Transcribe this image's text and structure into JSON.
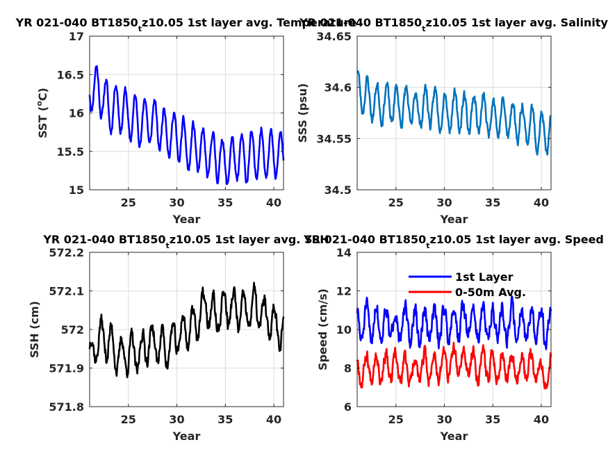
{
  "chart_data": [
    {
      "type": "line",
      "title": "YR 021-040 BT1850",
      "title_sub": "t",
      "title_rest": "z10.05 1st layer avg. Temperature",
      "xlabel": "Year",
      "ylabel": "SST (",
      "ylabel_sup": "o",
      "ylabel_rest": "C)",
      "xlim": [
        21,
        41
      ],
      "ylim": [
        15,
        17
      ],
      "xticks": [
        25,
        30,
        35,
        40
      ],
      "yticks": [
        15,
        15.5,
        16,
        16.5,
        17
      ],
      "ytick_labels": [
        "15",
        "15.5",
        "16",
        "16.5",
        "17"
      ],
      "grid": true,
      "series": [
        {
          "color": "#0000ff",
          "base": [
            [
              21,
              16.35
            ],
            [
              22,
              16.3
            ],
            [
              23,
              16.05
            ],
            [
              24,
              16.1
            ],
            [
              25,
              15.95
            ],
            [
              26,
              15.9
            ],
            [
              27,
              15.9
            ],
            [
              28,
              15.85
            ],
            [
              29,
              15.75
            ],
            [
              30,
              15.7
            ],
            [
              31,
              15.55
            ],
            [
              32,
              15.55
            ],
            [
              33,
              15.45
            ],
            [
              34,
              15.45
            ],
            [
              35,
              15.35
            ],
            [
              36,
              15.4
            ],
            [
              37,
              15.4
            ],
            [
              38,
              15.45
            ],
            [
              39,
              15.5
            ],
            [
              40,
              15.45
            ],
            [
              41,
              15.45
            ]
          ],
          "amplitude": 0.3,
          "period": 1,
          "phase": 0.55,
          "noise": 0.04,
          "seed": 11
        }
      ]
    },
    {
      "type": "line",
      "title": "YR 021-040 BT1850",
      "title_sub": "t",
      "title_rest": "z10.05 1st layer avg. Salinity",
      "xlabel": "Year",
      "ylabel": "SSS (psu)",
      "xlim": [
        21,
        41
      ],
      "ylim": [
        34.5,
        34.65
      ],
      "xticks": [
        25,
        30,
        35,
        40
      ],
      "yticks": [
        34.5,
        34.55,
        34.6,
        34.65
      ],
      "ytick_labels": [
        "34.5",
        "34.55",
        "34.6",
        "34.65"
      ],
      "grid": true,
      "series": [
        {
          "color": "#0072bd",
          "base": [
            [
              21,
              34.6
            ],
            [
              22,
              34.59
            ],
            [
              23,
              34.585
            ],
            [
              24,
              34.585
            ],
            [
              25,
              34.582
            ],
            [
              26,
              34.582
            ],
            [
              27,
              34.578
            ],
            [
              28,
              34.582
            ],
            [
              29,
              34.58
            ],
            [
              30,
              34.578
            ],
            [
              31,
              34.577
            ],
            [
              32,
              34.575
            ],
            [
              33,
              34.575
            ],
            [
              34,
              34.573
            ],
            [
              35,
              34.572
            ],
            [
              36,
              34.57
            ],
            [
              37,
              34.568
            ],
            [
              38,
              34.566
            ],
            [
              39,
              34.562
            ],
            [
              40,
              34.556
            ],
            [
              41,
              34.553
            ]
          ],
          "amplitude": 0.018,
          "period": 1,
          "phase": 0.2,
          "noise": 0.004,
          "seed": 23
        }
      ]
    },
    {
      "type": "line",
      "title": "YR 021-040 BT1850",
      "title_sub": "t",
      "title_rest": "z10.05 1st layer avg. SSH",
      "xlabel": "Year",
      "ylabel": "SSH (cm)",
      "xlim": [
        21,
        41
      ],
      "ylim": [
        571.8,
        572.2
      ],
      "xticks": [
        25,
        30,
        35,
        40
      ],
      "yticks": [
        571.8,
        571.9,
        572,
        572.1,
        572.2
      ],
      "ytick_labels": [
        "571.8",
        "571.9",
        "572",
        "572.1",
        "572.2"
      ],
      "grid": true,
      "series": [
        {
          "color": "#000000",
          "base": [
            [
              21,
              571.93
            ],
            [
              22,
              571.98
            ],
            [
              23,
              571.97
            ],
            [
              24,
              571.93
            ],
            [
              25,
              571.94
            ],
            [
              26,
              571.93
            ],
            [
              27,
              571.97
            ],
            [
              28,
              571.96
            ],
            [
              29,
              571.95
            ],
            [
              30,
              571.98
            ],
            [
              31,
              572.0
            ],
            [
              32,
              572.02
            ],
            [
              33,
              572.06
            ],
            [
              34,
              572.03
            ],
            [
              35,
              572.06
            ],
            [
              36,
              572.05
            ],
            [
              37,
              572.04
            ],
            [
              38,
              572.06
            ],
            [
              39,
              572.03
            ],
            [
              40,
              572.02
            ],
            [
              41,
              572.0
            ]
          ],
          "amplitude": 0.045,
          "period": 1.05,
          "phase": 0.1,
          "noise": 0.015,
          "seed": 37
        }
      ]
    },
    {
      "type": "line",
      "title": "YR 021-040 BT1850",
      "title_sub": "t",
      "title_rest": "z10.05 1st layer avg. Speed",
      "xlabel": "Year",
      "ylabel": "Speed (cm/s)",
      "xlim": [
        21,
        41
      ],
      "ylim": [
        6,
        14
      ],
      "xticks": [
        25,
        30,
        35,
        40
      ],
      "yticks": [
        6,
        8,
        10,
        12,
        14
      ],
      "ytick_labels": [
        "6",
        "8",
        "10",
        "12",
        "14"
      ],
      "grid": true,
      "legend": {
        "placement": "top-right",
        "entries": [
          "1st Layer",
          "0-50m Avg."
        ]
      },
      "series": [
        {
          "name": "1st Layer",
          "color": "#0000ff",
          "base": [
            [
              21,
              10.2
            ],
            [
              23,
              10.4
            ],
            [
              25,
              10.3
            ],
            [
              27,
              10.1
            ],
            [
              29,
              10.2
            ],
            [
              31,
              10.5
            ],
            [
              33,
              10.4
            ],
            [
              35,
              10.3
            ],
            [
              37,
              10.4
            ],
            [
              39,
              10.2
            ],
            [
              41,
              10.1
            ]
          ],
          "amplitude": 0.85,
          "period": 1,
          "phase": 0.3,
          "noise": 0.35,
          "seed": 51
        },
        {
          "name": "0-50m Avg.",
          "color": "#ff0000",
          "base": [
            [
              21,
              7.9
            ],
            [
              23,
              8.2
            ],
            [
              25,
              7.9
            ],
            [
              27,
              7.9
            ],
            [
              29,
              8.1
            ],
            [
              31,
              8.3
            ],
            [
              33,
              8.2
            ],
            [
              35,
              8.1
            ],
            [
              37,
              8.2
            ],
            [
              39,
              8.0
            ],
            [
              41,
              7.8
            ]
          ],
          "amplitude": 0.7,
          "period": 1,
          "phase": 0.3,
          "noise": 0.3,
          "seed": 67
        }
      ]
    }
  ]
}
